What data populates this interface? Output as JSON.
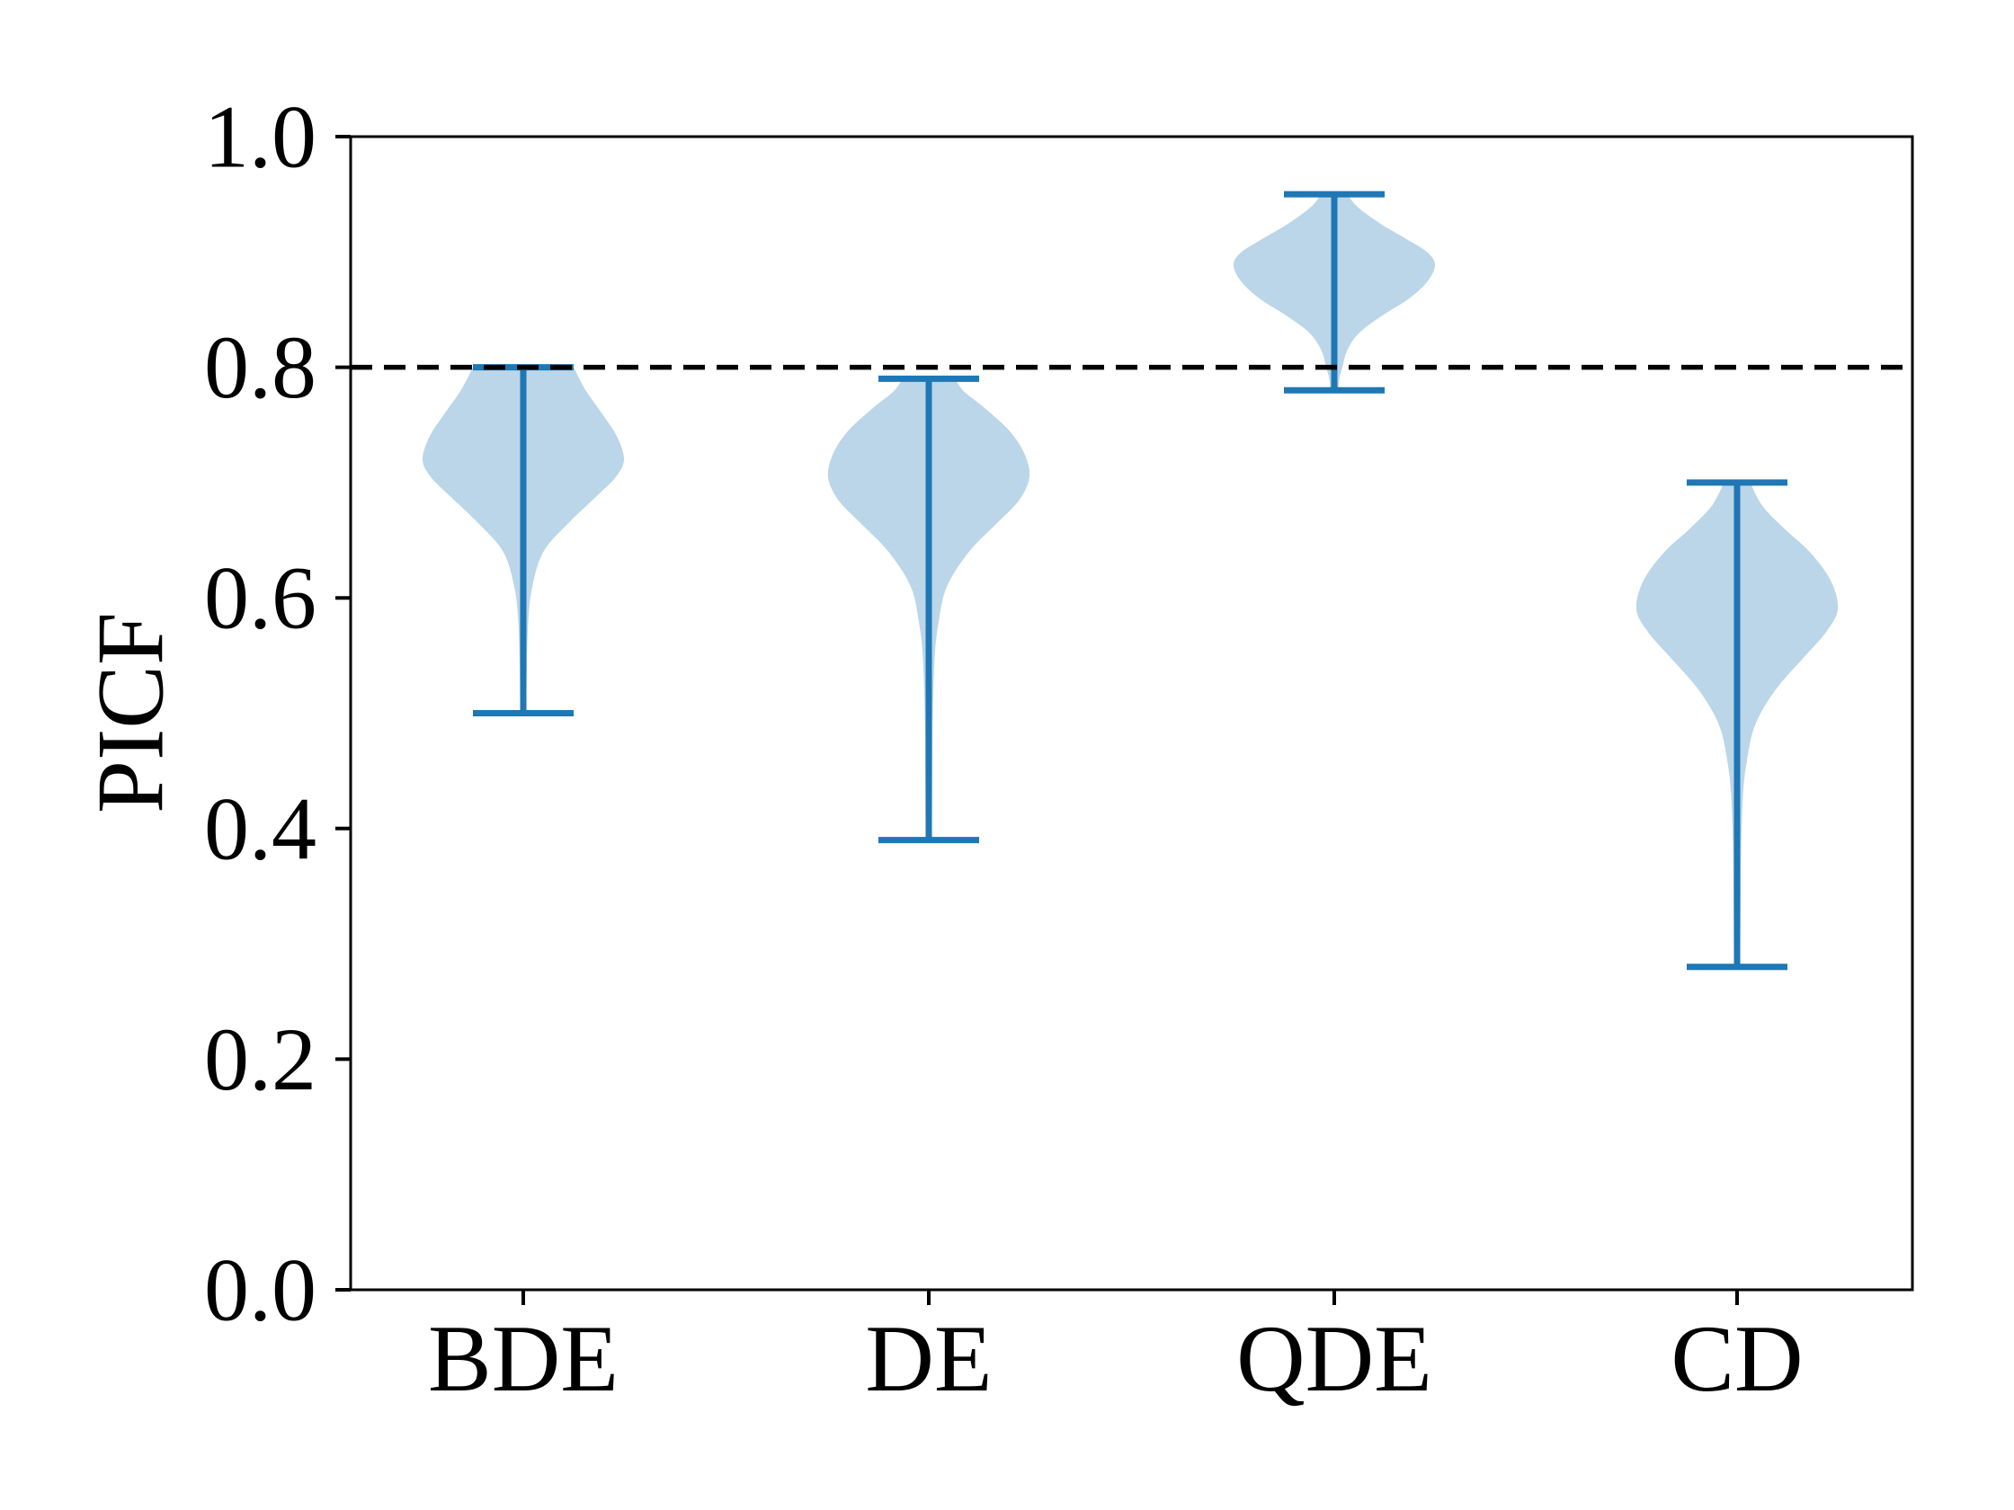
{
  "figure": {
    "background": "#ffffff"
  },
  "chart_data": {
    "type": "violin",
    "title": "",
    "xlabel": "",
    "ylabel": "PICF",
    "categories": [
      "BDE",
      "DE",
      "QDE",
      "CD"
    ],
    "ylim": [
      0.0,
      1.0
    ],
    "yticks": [
      0.0,
      0.2,
      0.4,
      0.6,
      0.8,
      1.0
    ],
    "ytick_labels": [
      "0.0",
      "0.2",
      "0.4",
      "0.6",
      "0.8",
      "1.0"
    ],
    "grid": false,
    "legend": false,
    "reference_line": {
      "y": 0.8,
      "style": "dashed",
      "color": "#000000"
    },
    "series": [
      {
        "category": "BDE",
        "min": 0.5,
        "max": 0.8,
        "peak": 0.72,
        "profile": [
          [
            0.5,
            0.03
          ],
          [
            0.54,
            0.035
          ],
          [
            0.58,
            0.05
          ],
          [
            0.61,
            0.09
          ],
          [
            0.64,
            0.2
          ],
          [
            0.665,
            0.45
          ],
          [
            0.69,
            0.75
          ],
          [
            0.705,
            0.92
          ],
          [
            0.72,
            1.0
          ],
          [
            0.74,
            0.93
          ],
          [
            0.76,
            0.78
          ],
          [
            0.78,
            0.62
          ],
          [
            0.8,
            0.5
          ]
        ]
      },
      {
        "category": "DE",
        "min": 0.39,
        "max": 0.79,
        "peak": 0.705,
        "profile": [
          [
            0.39,
            0.03
          ],
          [
            0.45,
            0.035
          ],
          [
            0.5,
            0.04
          ],
          [
            0.55,
            0.06
          ],
          [
            0.58,
            0.1
          ],
          [
            0.61,
            0.18
          ],
          [
            0.64,
            0.4
          ],
          [
            0.665,
            0.68
          ],
          [
            0.685,
            0.9
          ],
          [
            0.705,
            1.0
          ],
          [
            0.725,
            0.95
          ],
          [
            0.745,
            0.8
          ],
          [
            0.765,
            0.55
          ],
          [
            0.779,
            0.35
          ],
          [
            0.79,
            0.26
          ]
        ]
      },
      {
        "category": "QDE",
        "min": 0.78,
        "max": 0.95,
        "peak": 0.89,
        "profile": [
          [
            0.78,
            0.04
          ],
          [
            0.79,
            0.05
          ],
          [
            0.8,
            0.08
          ],
          [
            0.815,
            0.13
          ],
          [
            0.83,
            0.25
          ],
          [
            0.845,
            0.48
          ],
          [
            0.86,
            0.75
          ],
          [
            0.875,
            0.93
          ],
          [
            0.889,
            1.0
          ],
          [
            0.9,
            0.92
          ],
          [
            0.912,
            0.7
          ],
          [
            0.925,
            0.45
          ],
          [
            0.94,
            0.22
          ],
          [
            0.952,
            0.12
          ]
        ]
      },
      {
        "category": "CD",
        "min": 0.28,
        "max": 0.7,
        "peak": 0.59,
        "profile": [
          [
            0.28,
            0.03
          ],
          [
            0.33,
            0.035
          ],
          [
            0.38,
            0.04
          ],
          [
            0.43,
            0.06
          ],
          [
            0.46,
            0.1
          ],
          [
            0.49,
            0.18
          ],
          [
            0.52,
            0.38
          ],
          [
            0.55,
            0.68
          ],
          [
            0.57,
            0.88
          ],
          [
            0.59,
            1.0
          ],
          [
            0.615,
            0.93
          ],
          [
            0.64,
            0.72
          ],
          [
            0.66,
            0.47
          ],
          [
            0.68,
            0.25
          ],
          [
            0.7,
            0.13
          ]
        ]
      }
    ],
    "colors": {
      "violin_fill": "rgba(31,119,180,0.30)",
      "violin_line": "#1f77b4",
      "axis": "#000000",
      "background": "#ffffff"
    }
  }
}
